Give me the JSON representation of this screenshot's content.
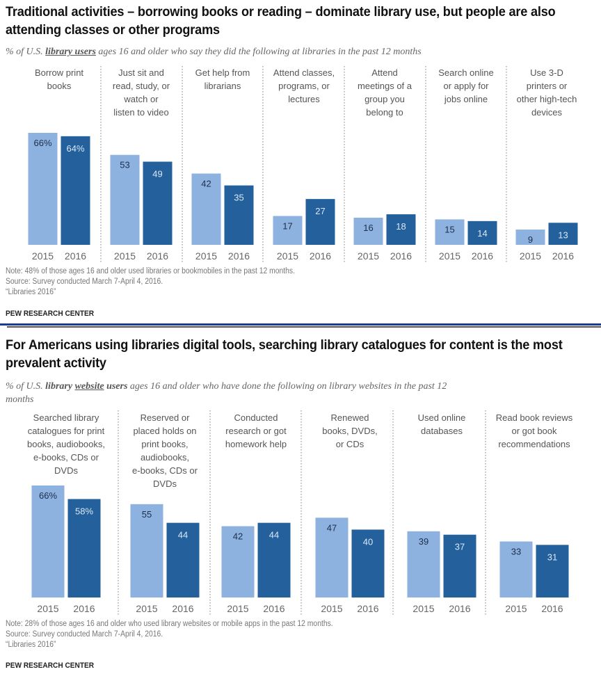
{
  "colors": {
    "y2015": "#8eb2e0",
    "y2016": "#23609c",
    "label2015": "#1c2e4a",
    "label2016": "#dce8f7",
    "axis": "#666666",
    "category": "#555555",
    "divider_blue": "#1f3a93"
  },
  "chart_data": [
    {
      "type": "bar",
      "title": "Traditional activities – borrowing books or reading – dominate library use, but people are also attending classes or other programs",
      "subtitle_parts": [
        "% of U.S. ",
        "library users",
        " ages 16 and older who say they did the following at libraries in the past 12 months"
      ],
      "categories": [
        [
          "Borrow print",
          "books"
        ],
        [
          "Just sit and",
          "read, study, or",
          "watch or",
          "listen to video"
        ],
        [
          "Get help from",
          "librarians"
        ],
        [
          "Attend classes,",
          "programs, or",
          "lectures"
        ],
        [
          "Attend",
          "meetings of a",
          "group you",
          "belong to"
        ],
        [
          "Search online",
          "or apply for",
          "jobs online"
        ],
        [
          "Use 3-D",
          "printers or",
          "other high-tech",
          "devices"
        ]
      ],
      "series": [
        {
          "name": "2015",
          "values": [
            66,
            53,
            42,
            17,
            16,
            15,
            9
          ]
        },
        {
          "name": "2016",
          "values": [
            64,
            49,
            35,
            27,
            18,
            14,
            13
          ]
        }
      ],
      "value_labels": [
        [
          "66%",
          "53",
          "42",
          "17",
          "16",
          "15",
          "9"
        ],
        [
          "64%",
          "49",
          "35",
          "27",
          "18",
          "14",
          "13"
        ]
      ],
      "xlabel": "",
      "ylabel": "",
      "ylim": [
        0,
        100
      ],
      "grid": false,
      "legend": "none",
      "notes": [
        "Note: 48% of those ages 16 and older used libraries or bookmobiles in the past 12 months.",
        "Source: Survey conducted March 7-April 4, 2016.",
        "“Libraries 2016”"
      ],
      "brand": "PEW RESEARCH CENTER"
    },
    {
      "type": "bar",
      "title": "For Americans using libraries digital tools, searching library catalogues for content is the most prevalent activity",
      "subtitle_parts": [
        "% of U.S. ",
        "library ",
        "website",
        " users",
        " ages 16 and older who have done the following on library websites in the past 12",
        "months"
      ],
      "categories": [
        [
          "Searched library",
          "catalogues for print",
          "books, audiobooks,",
          "e-books, CDs or",
          "DVDs"
        ],
        [
          "Reserved or",
          "placed holds on",
          "print books,",
          "audiobooks,",
          "e-books, CDs or",
          "DVDs"
        ],
        [
          "Conducted",
          "research or got",
          "homework help"
        ],
        [
          "Renewed",
          "books, DVDs,",
          "or CDs"
        ],
        [
          "Used online",
          "databases"
        ],
        [
          "Read book reviews",
          "or got book",
          "recommendations"
        ]
      ],
      "series": [
        {
          "name": "2015",
          "values": [
            66,
            55,
            42,
            47,
            39,
            33
          ]
        },
        {
          "name": "2016",
          "values": [
            58,
            44,
            44,
            40,
            37,
            31
          ]
        }
      ],
      "value_labels": [
        [
          "66%",
          "55",
          "42",
          "47",
          "39",
          "33"
        ],
        [
          "58%",
          "44",
          "44",
          "40",
          "37",
          "31"
        ]
      ],
      "xlabel": "",
      "ylabel": "",
      "ylim": [
        0,
        100
      ],
      "grid": false,
      "legend": "none",
      "notes": [
        "Note: 28% of those ages 16 and older who used library websites or mobile apps in the past 12 months.",
        "Source: Survey conducted March 7-April 4, 2016.",
        "“Libraries 2016”"
      ],
      "brand": "PEW RESEARCH CENTER"
    }
  ]
}
